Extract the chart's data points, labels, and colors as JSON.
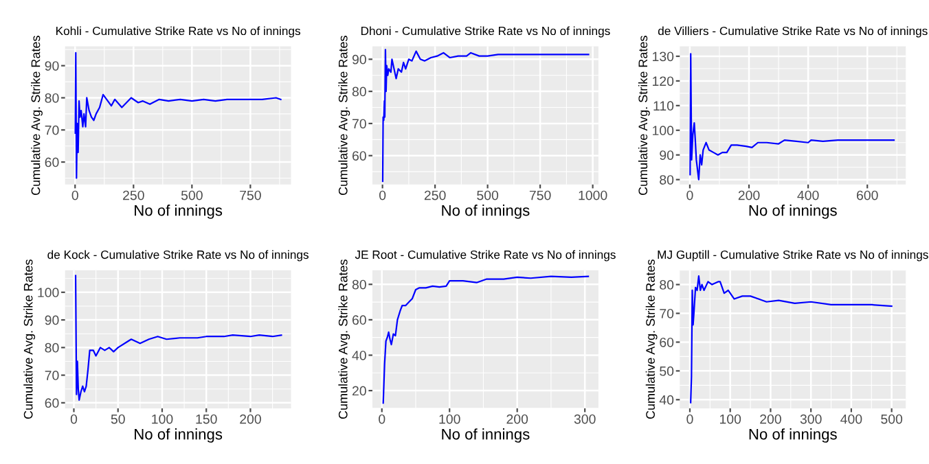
{
  "chart_data": [
    {
      "type": "line",
      "title": "Kohli - Cumulative Strike Rate vs No of innings",
      "xlabel": "No of innings",
      "ylabel": "Cumulative Avg. Strike Rates",
      "xlim": [
        -43,
        924
      ],
      "ylim": [
        53,
        96
      ],
      "xticks": [
        0,
        250,
        500,
        750
      ],
      "yticks": [
        60,
        70,
        80,
        90
      ],
      "grid": true,
      "legend": false,
      "series": [
        {
          "color": "#0000ff",
          "x": [
            1,
            3,
            6,
            9,
            13,
            17,
            21,
            26,
            33,
            38,
            45,
            50,
            60,
            70,
            80,
            90,
            105,
            120,
            140,
            155,
            170,
            200,
            240,
            270,
            290,
            320,
            360,
            400,
            450,
            500,
            550,
            600,
            650,
            700,
            750,
            800,
            860,
            880
          ],
          "values": [
            69,
            94,
            55,
            72,
            63,
            79,
            74,
            76,
            71,
            75,
            71,
            80,
            76,
            74,
            73,
            75,
            77,
            81,
            79,
            77.5,
            79.5,
            77,
            80,
            78.5,
            79,
            78,
            79.5,
            79,
            79.5,
            79,
            79.5,
            79,
            79.5,
            79.5,
            79.5,
            79.5,
            80,
            79.5
          ]
        }
      ]
    },
    {
      "type": "line",
      "title": "Dhoni - Cumulative Strike Rate vs No of innings",
      "xlabel": "No of innings",
      "ylabel": "Cumulative Avg. Strike Rates",
      "xlim": [
        -48,
        1027
      ],
      "ylim": [
        51,
        94
      ],
      "xticks": [
        0,
        250,
        500,
        750,
        1000
      ],
      "yticks": [
        60,
        70,
        80,
        90
      ],
      "grid": true,
      "legend": false,
      "series": [
        {
          "color": "#0000ff",
          "x": [
            1,
            3,
            6,
            9,
            11,
            14,
            17,
            20,
            25,
            30,
            40,
            45,
            55,
            65,
            75,
            90,
            100,
            110,
            125,
            140,
            160,
            180,
            200,
            230,
            260,
            290,
            320,
            360,
            400,
            420,
            460,
            500,
            550,
            600,
            680,
            750,
            820,
            900,
            980
          ],
          "values": [
            52,
            72,
            71,
            77,
            72,
            93,
            80,
            88,
            85,
            87,
            86,
            90,
            87,
            84,
            87,
            86,
            89,
            87,
            90,
            89.5,
            92.5,
            90,
            89.5,
            90.5,
            91,
            92,
            90.5,
            91,
            91,
            92,
            91,
            91,
            91.5,
            91.5,
            91.5,
            91.5,
            91.5,
            91.5,
            91.5
          ]
        }
      ]
    },
    {
      "type": "line",
      "title": "de Villiers - Cumulative Strike Rate vs No of innings",
      "xlabel": "No of innings",
      "ylabel": "Cumulative Avg. Strike Rates",
      "xlim": [
        -34,
        730
      ],
      "ylim": [
        78,
        134
      ],
      "xticks": [
        0,
        200,
        400,
        600
      ],
      "yticks": [
        80,
        90,
        100,
        110,
        120,
        130
      ],
      "grid": true,
      "legend": false,
      "series": [
        {
          "color": "#0000ff",
          "x": [
            1,
            3,
            6,
            10,
            15,
            18,
            22,
            27,
            30,
            35,
            40,
            45,
            55,
            65,
            80,
            95,
            110,
            125,
            140,
            160,
            190,
            210,
            230,
            260,
            300,
            320,
            360,
            400,
            410,
            450,
            500,
            550,
            600,
            650,
            690
          ],
          "values": [
            82,
            131,
            88,
            98,
            103,
            97,
            88,
            83,
            80,
            90,
            86,
            92,
            95,
            92,
            91,
            90,
            91,
            91,
            94,
            94,
            93.5,
            93,
            95,
            95,
            94.5,
            96,
            95.5,
            95,
            96,
            95.5,
            96,
            96,
            96,
            96,
            96
          ]
        }
      ]
    },
    {
      "type": "line",
      "title": "de Kock - Cumulative Strike Rate vs No of innings",
      "xlabel": "No of innings",
      "ylabel": "Cumulative Avg. Strike Rates",
      "xlim": [
        -10,
        246
      ],
      "ylim": [
        58,
        108
      ],
      "xticks": [
        0,
        50,
        100,
        150,
        200
      ],
      "yticks": [
        60,
        70,
        80,
        90,
        100
      ],
      "grid": true,
      "legend": false,
      "series": [
        {
          "color": "#0000ff",
          "x": [
            2,
            3,
            4,
            5,
            6,
            8,
            10,
            12,
            14,
            16,
            18,
            22,
            25,
            30,
            35,
            40,
            45,
            50,
            60,
            65,
            75,
            85,
            95,
            105,
            120,
            140,
            150,
            170,
            180,
            200,
            210,
            225,
            235
          ],
          "values": [
            106,
            63,
            75,
            65,
            61,
            64,
            66,
            64,
            66,
            72,
            79,
            79,
            77,
            80,
            79,
            80,
            78.5,
            80,
            82,
            83,
            81.5,
            83,
            84,
            83,
            83.5,
            83.5,
            84,
            84,
            84.5,
            84,
            84.5,
            84,
            84.5
          ]
        }
      ]
    },
    {
      "type": "line",
      "title": "JE Root - Cumulative Strike Rate vs No of innings",
      "xlabel": "No of innings",
      "ylabel": "Cumulative Avg. Strike Rates",
      "xlim": [
        -14,
        320
      ],
      "ylim": [
        10,
        88
      ],
      "xticks": [
        0,
        100,
        200,
        300
      ],
      "yticks": [
        20,
        40,
        60,
        80
      ],
      "grid": true,
      "legend": false,
      "series": [
        {
          "color": "#0000ff",
          "x": [
            2,
            4,
            6,
            8,
            10,
            12,
            14,
            17,
            20,
            23,
            27,
            30,
            35,
            40,
            45,
            50,
            55,
            65,
            75,
            85,
            95,
            100,
            120,
            140,
            155,
            180,
            200,
            220,
            250,
            280,
            305
          ],
          "values": [
            13,
            35,
            48,
            50,
            53,
            49,
            46,
            52,
            51,
            60,
            65,
            68,
            68,
            70,
            72,
            77,
            78,
            78,
            79,
            78.5,
            79,
            82,
            82,
            81,
            83,
            83,
            84,
            83.5,
            84.5,
            84,
            84.5
          ]
        }
      ]
    },
    {
      "type": "line",
      "title": "MJ Guptill - Cumulative Strike Rate vs No of innings",
      "xlabel": "No of innings",
      "ylabel": "Cumulative Avg. Strike Rates",
      "xlim": [
        -25,
        535
      ],
      "ylim": [
        37,
        85
      ],
      "xticks": [
        0,
        100,
        200,
        300,
        400,
        500
      ],
      "yticks": [
        40,
        50,
        60,
        70,
        80
      ],
      "grid": true,
      "legend": false,
      "series": [
        {
          "color": "#0000ff",
          "x": [
            2,
            4,
            6,
            8,
            10,
            14,
            18,
            22,
            26,
            30,
            35,
            45,
            55,
            70,
            75,
            85,
            95,
            110,
            130,
            150,
            170,
            190,
            220,
            260,
            300,
            350,
            400,
            450,
            500
          ],
          "values": [
            39,
            48,
            78,
            66,
            70,
            79,
            78,
            83,
            78,
            80,
            78,
            81,
            80,
            81,
            81,
            77,
            78,
            75,
            76,
            76,
            75,
            74,
            74.5,
            73.5,
            74,
            73,
            73,
            73,
            72.5
          ]
        }
      ]
    }
  ]
}
